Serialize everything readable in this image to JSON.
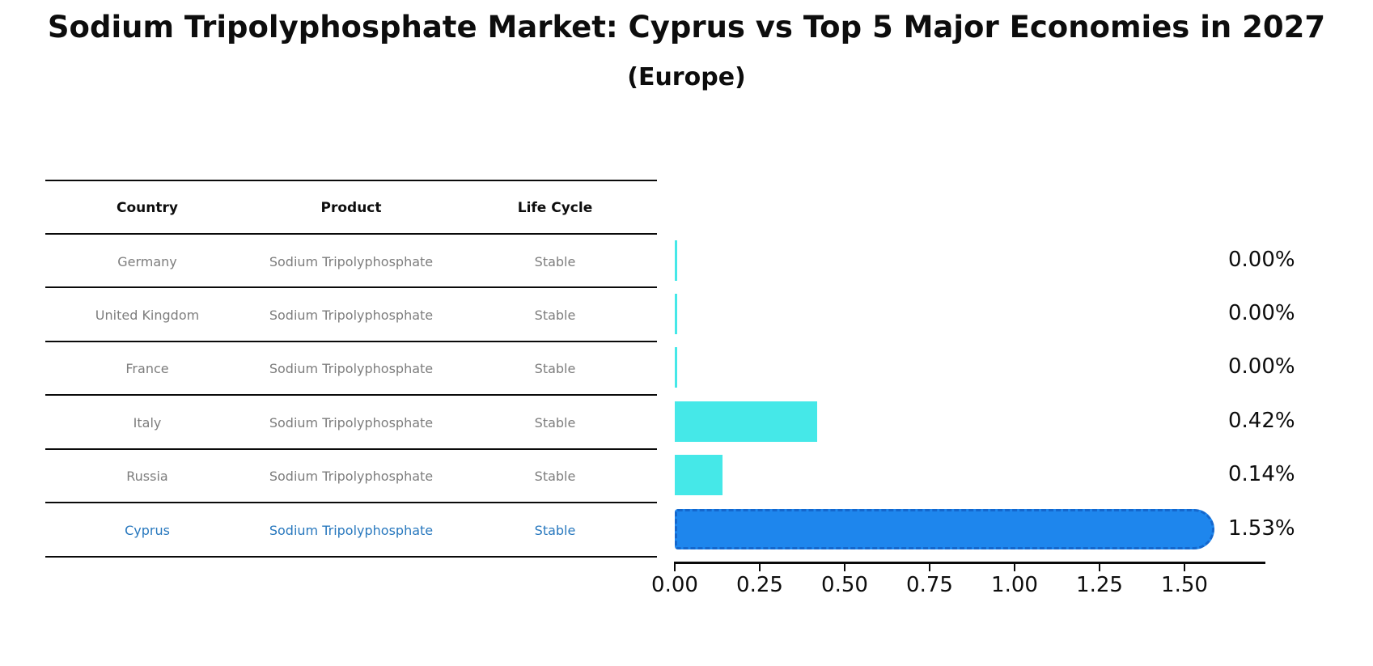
{
  "title": "Sodium Tripolyphosphate Market: Cyprus vs Top 5 Major Economies in 2027",
  "subtitle": "(Europe)",
  "table": {
    "headers": [
      "Country",
      "Product",
      "Life Cycle"
    ],
    "rows": [
      {
        "country": "Germany",
        "product": "Sodium Tripolyphosphate",
        "life_cycle": "Stable",
        "highlight": false
      },
      {
        "country": "United Kingdom",
        "product": "Sodium Tripolyphosphate",
        "life_cycle": "Stable",
        "highlight": false
      },
      {
        "country": "France",
        "product": "Sodium Tripolyphosphate",
        "life_cycle": "Stable",
        "highlight": false
      },
      {
        "country": "Italy",
        "product": "Sodium Tripolyphosphate",
        "life_cycle": "Stable",
        "highlight": false
      },
      {
        "country": "Russia",
        "product": "Sodium Tripolyphosphate",
        "life_cycle": "Stable",
        "highlight": false
      },
      {
        "country": "Cyprus",
        "product": "Sodium Tripolyphosphate",
        "life_cycle": "Stable",
        "highlight": true
      }
    ]
  },
  "chart_data": {
    "type": "bar",
    "orientation": "horizontal",
    "categories": [
      "Germany",
      "United Kingdom",
      "France",
      "Italy",
      "Russia",
      "Cyprus"
    ],
    "values": [
      0.0,
      0.0,
      0.0,
      0.42,
      0.14,
      1.53
    ],
    "value_labels": [
      "0.00%",
      "0.00%",
      "0.00%",
      "0.42%",
      "0.14%",
      "1.53%"
    ],
    "x_ticks": [
      "0.00",
      "0.25",
      "0.50",
      "0.75",
      "1.00",
      "1.25",
      "1.50"
    ],
    "xlim": [
      0,
      1.74
    ],
    "grid": false,
    "legend": "none",
    "highlight_index": 5,
    "bar_color": "#45e8e8",
    "highlight_fill_color": "#1e86ed",
    "highlight_edge_color": "#1467cd",
    "highlight_text_color": "#2878be",
    "table_text_color": "#7d7d7d",
    "axis_color": "#0a0a0a"
  }
}
